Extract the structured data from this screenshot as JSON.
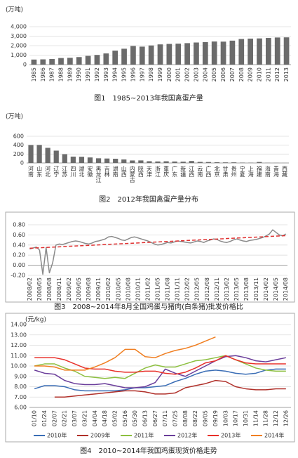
{
  "chart_data": [
    {
      "type": "bar",
      "title": "图1　1985~2013年我国禽蛋产量",
      "ylabel": "(万吨)",
      "categories": [
        "1985",
        "1986",
        "1987",
        "1988",
        "1989",
        "1990",
        "1991",
        "1992",
        "1993",
        "1994",
        "1995",
        "1996",
        "1997",
        "1998",
        "1999",
        "2000",
        "2001",
        "2002",
        "2003",
        "2004",
        "2005",
        "2006",
        "2007",
        "2008",
        "2009",
        "2010",
        "2011",
        "2012",
        "2013"
      ],
      "values": [
        535,
        555,
        590,
        695,
        720,
        795,
        922,
        1020,
        1180,
        1479,
        1677,
        1965,
        1897,
        2021,
        2134,
        2182,
        2210,
        2266,
        2333,
        2371,
        2438,
        2424,
        2529,
        2702,
        2743,
        2763,
        2811,
        2861,
        2876
      ],
      "color": "#6b6b6b",
      "ylim": [
        0,
        4000
      ],
      "yticks": [
        0,
        {
          "value": 1000,
          "label": "1,000"
        },
        {
          "value": 2000,
          "label": "2,000"
        },
        {
          "value": 3000,
          "label": "3,000"
        },
        {
          "value": 4000,
          "label": "4,000"
        }
      ],
      "grid": true
    },
    {
      "type": "bar",
      "title": "图2　2012年我国禽蛋产量分布",
      "ylabel": "(万吨)",
      "categories": [
        "河南",
        "山东",
        "河北",
        "辽宁",
        "江苏",
        "四川",
        "湖北",
        "安徽",
        "黑龙江",
        "吉林",
        "湖南",
        "山西",
        "内蒙古",
        "陕西",
        "天津",
        "浙江",
        "重庆",
        "广东",
        "新疆",
        "江西",
        "云南",
        "广西",
        "北京",
        "甘肃",
        "贵州",
        "宁夏",
        "上海",
        "福建",
        "海南",
        "青海",
        "西藏"
      ],
      "values": [
        404,
        405,
        340,
        277,
        197,
        143,
        140,
        124,
        105,
        100,
        95,
        79,
        56,
        57,
        39,
        34,
        38,
        33,
        29,
        44,
        24,
        21,
        16,
        13,
        14,
        8,
        5,
        22,
        3,
        2,
        0.5
      ],
      "color": "#6b6b6b",
      "ylim": [
        0,
        600
      ],
      "yticks": [
        0,
        200,
        400,
        600
      ],
      "grid": true
    },
    {
      "type": "line",
      "title": "图3　2008~2014年8月全国鸡蛋与猪肉(白条猪)批发价格比",
      "categories": [
        "2008/02",
        null,
        null,
        "2008/05",
        null,
        null,
        "2008/08",
        null,
        null,
        "2008/11",
        null,
        null,
        "2009/02",
        null,
        null,
        "2009/05",
        null,
        null,
        "2009/08",
        null,
        null,
        "2009/11",
        null,
        null,
        "2010/02",
        null,
        null,
        "2010/05",
        null,
        null,
        "2010/08",
        null,
        null,
        "2010/11",
        null,
        null,
        "2011/02",
        null,
        null,
        "2011/05",
        null,
        null,
        "2011/08",
        null,
        null,
        "2011/11",
        null,
        null,
        "2012/02",
        null,
        null,
        "2012/05",
        null,
        null,
        "2012/08",
        null,
        null,
        "2012/11",
        null,
        null,
        "2013/02",
        null,
        null,
        "2013/05",
        null,
        null,
        "2013/08",
        null,
        null,
        "2013/11",
        null,
        null,
        "2014/02",
        null,
        null,
        "2014/05",
        null,
        null,
        "2014/08"
      ],
      "series": [
        {
          "color": "#8a8a8a",
          "values": [
            0.32,
            0.34,
            0.36,
            0.3,
            -0.18,
            0.35,
            -0.15,
            0.05,
            0.4,
            0.42,
            0.41,
            0.43,
            0.45,
            0.47,
            0.48,
            0.47,
            0.45,
            0.43,
            0.42,
            0.44,
            0.47,
            0.48,
            0.5,
            0.52,
            0.56,
            0.57,
            0.55,
            0.53,
            0.5,
            0.49,
            0.52,
            0.55,
            0.56,
            0.54,
            0.52,
            0.5,
            0.48,
            0.45,
            0.42,
            0.4,
            0.41,
            0.43,
            0.45,
            0.44,
            0.46,
            0.48,
            0.47,
            0.46,
            0.45,
            0.44,
            0.46,
            0.48,
            0.47,
            0.45,
            0.48,
            0.5,
            0.52,
            0.51,
            0.48,
            0.46,
            0.45,
            0.47,
            0.5,
            0.52,
            0.5,
            0.48,
            0.47,
            0.49,
            0.5,
            0.51,
            0.53,
            0.55,
            0.58,
            0.62,
            0.7,
            0.65,
            0.6,
            0.58,
            0.62
          ]
        }
      ],
      "trendline": {
        "color": "#e03030",
        "dashed": true
      },
      "ylim": [
        -0.2,
        0.8
      ],
      "yticks": [
        {
          "value": -0.2,
          "label": "-0.20"
        },
        {
          "value": 0,
          "label": "0.00"
        },
        {
          "value": 0.2,
          "label": "0.20"
        },
        {
          "value": 0.4,
          "label": "0.40"
        },
        {
          "value": 0.6,
          "label": "0.60"
        },
        {
          "value": 0.8,
          "label": "0.80"
        }
      ],
      "grid": true
    },
    {
      "type": "line",
      "title": "图4　2010~2014年我国鸡蛋现货价格走势",
      "ylabel": "(元/kg)",
      "categories": [
        "01/10",
        "01/24",
        "02/07",
        "02/21",
        "03/07",
        "03/21",
        "04/04",
        "04/18",
        "05/02",
        "05/16",
        "05/30",
        "06/13",
        "06/27",
        "07/11",
        "07/25",
        "08/08",
        "08/22",
        "09/05",
        "09/19",
        "10/03",
        "10/17",
        "10/31",
        "11/14",
        "11/28",
        "12/12",
        "12/26"
      ],
      "series": [
        {
          "name": "2010年",
          "color": "#3a6db5",
          "values": [
            7.8,
            8.1,
            8.1,
            8.0,
            7.7,
            7.6,
            7.6,
            7.6,
            7.6,
            7.7,
            7.9,
            7.9,
            8.0,
            8.1,
            8.5,
            8.8,
            9.2,
            9.5,
            9.6,
            9.5,
            9.3,
            9.2,
            9.3,
            9.6,
            9.7,
            9.7
          ]
        },
        {
          "name": "2009年",
          "color": "#b0302a",
          "values": [
            null,
            null,
            7.0,
            7.0,
            7.1,
            7.2,
            7.3,
            7.4,
            7.5,
            7.6,
            7.6,
            7.5,
            7.3,
            7.3,
            7.4,
            7.9,
            8.1,
            8.3,
            8.6,
            8.5,
            8.0,
            7.8,
            7.7,
            7.7,
            7.8,
            7.8
          ]
        },
        {
          "name": "2011年",
          "color": "#8cbf3f",
          "values": [
            10.0,
            10.2,
            10.2,
            9.8,
            9.5,
            9.0,
            8.9,
            8.8,
            8.9,
            8.8,
            9.3,
            9.8,
            10.1,
            9.9,
            9.9,
            10.2,
            10.5,
            10.6,
            10.8,
            11.0,
            10.6,
            10.2,
            9.8,
            9.6,
            9.5,
            9.5
          ]
        },
        {
          "name": "2012年",
          "color": "#6a3d9a",
          "values": [
            9.6,
            9.3,
            9.2,
            8.6,
            8.3,
            8.2,
            8.2,
            8.3,
            8.1,
            7.9,
            7.9,
            8.0,
            8.4,
            9.7,
            9.3,
            9.0,
            9.5,
            10.0,
            10.5,
            10.9,
            11.0,
            10.8,
            10.5,
            10.4,
            10.6,
            10.8
          ]
        },
        {
          "name": "2013年",
          "color": "#e8302a",
          "values": [
            10.8,
            10.8,
            10.8,
            10.6,
            10.2,
            9.8,
            9.7,
            9.7,
            9.5,
            9.4,
            9.4,
            9.5,
            9.5,
            9.3,
            9.2,
            9.4,
            9.8,
            10.3,
            10.5,
            11.0,
            10.6,
            10.3,
            10.2,
            10.2,
            10.2,
            10.2
          ]
        },
        {
          "name": "2014年",
          "color": "#f07f22",
          "values": [
            10.0,
            10.0,
            9.9,
            9.6,
            9.6,
            9.6,
            9.9,
            10.3,
            10.8,
            11.6,
            11.6,
            10.9,
            10.8,
            11.2,
            11.5,
            11.7,
            12.0,
            12.4,
            12.8,
            null,
            null,
            null,
            null,
            null,
            null,
            null
          ]
        }
      ],
      "ylim": [
        6,
        14
      ],
      "yticks": [
        {
          "value": 6,
          "label": "6.00"
        },
        {
          "value": 7,
          "label": "7.00"
        },
        {
          "value": 8,
          "label": "8.00"
        },
        {
          "value": 9,
          "label": "9.00"
        },
        {
          "value": 10,
          "label": "10.00"
        },
        {
          "value": 11,
          "label": "11.00"
        },
        {
          "value": 12,
          "label": "12.00"
        },
        {
          "value": 13,
          "label": "13.00"
        },
        {
          "value": 14,
          "label": "14.00"
        }
      ],
      "grid": true
    }
  ]
}
